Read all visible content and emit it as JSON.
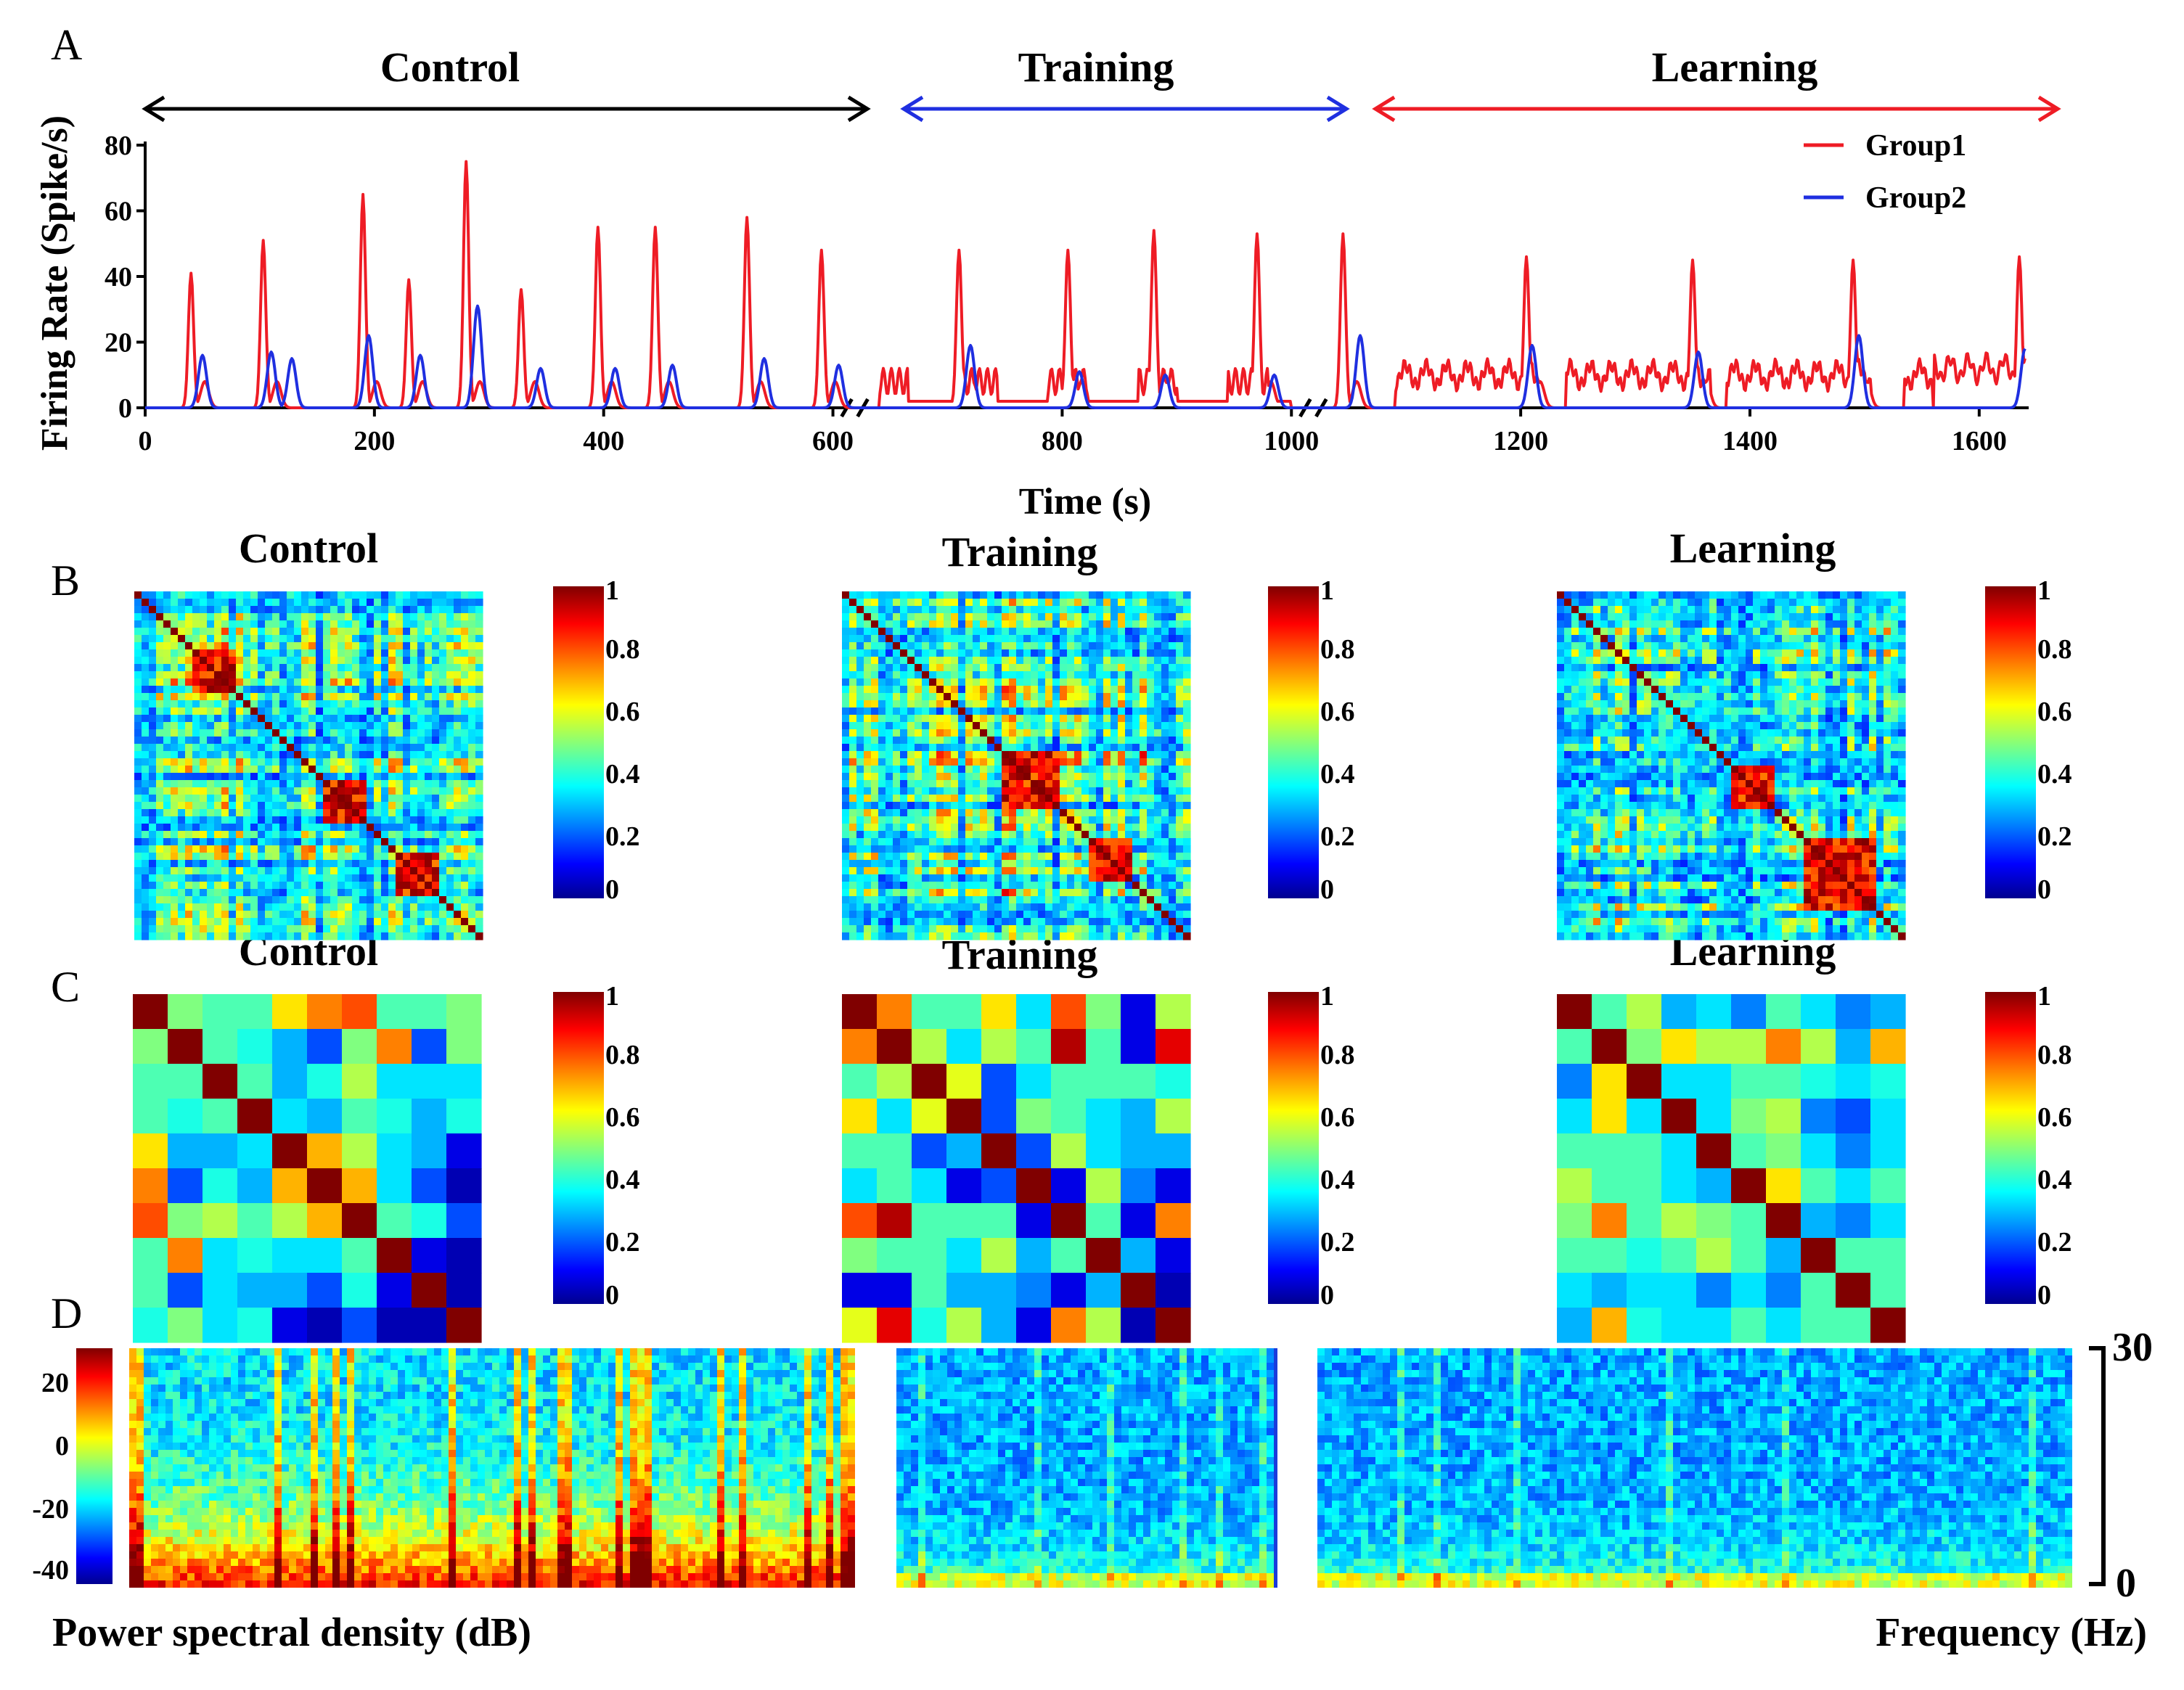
{
  "panels": {
    "A": "A",
    "B": "B",
    "C": "C",
    "D": "D"
  },
  "phases": {
    "control": "Control",
    "training": "Training",
    "learning": "Learning"
  },
  "panelA": {
    "ylabel": "Firing Rate (Spike/s)",
    "xlabel": "Time (s)",
    "yticks": [
      "0",
      "20",
      "40",
      "60",
      "80"
    ],
    "xticks": [
      "0",
      "200",
      "400",
      "600",
      "800",
      "1000",
      "1200",
      "1400",
      "1600"
    ],
    "legend": [
      "Group1",
      "Group2"
    ]
  },
  "colorbar_ticks": [
    "0",
    "0.2",
    "0.4",
    "0.6",
    "0.8",
    "1"
  ],
  "panelD": {
    "left_label": "Power spectral density (dB)",
    "right_label": "Frequency (Hz)",
    "cb_ticks": [
      "20",
      "0",
      "-20",
      "-40"
    ],
    "freq_ticks": [
      "30",
      "0"
    ]
  },
  "colors": {
    "group1": "#ee1c25",
    "group2": "#1f2fe0",
    "control_arrow": "#000000",
    "training_arrow": "#1f2fe0",
    "learning_arrow": "#ee1c25"
  },
  "chart_data": [
    {
      "type": "line",
      "ylabel": "Firing Rate (Spike/s)",
      "xlabel": "Time (s)",
      "ylim": [
        0,
        80
      ],
      "xlim": [
        0,
        1640
      ],
      "series": [
        {
          "name": "Group1",
          "peaks": [
            [
              40,
              41
            ],
            [
              103,
              51
            ],
            [
              190,
              65
            ],
            [
              230,
              39
            ],
            [
              280,
              75
            ],
            [
              328,
              36
            ],
            [
              395,
              55
            ],
            [
              445,
              55
            ],
            [
              525,
              58
            ],
            [
              590,
              48
            ],
            [
              710,
              48
            ],
            [
              805,
              48
            ],
            [
              880,
              54
            ],
            [
              970,
              53
            ],
            [
              1045,
              53
            ],
            [
              1205,
              46
            ],
            [
              1350,
              45
            ],
            [
              1490,
              45
            ],
            [
              1635,
              46
            ]
          ]
        },
        {
          "name": "Group2",
          "peaks": [
            [
              50,
              16
            ],
            [
              110,
              17
            ],
            [
              128,
              15
            ],
            [
              195,
              22
            ],
            [
              240,
              16
            ],
            [
              290,
              31
            ],
            [
              345,
              12
            ],
            [
              410,
              12
            ],
            [
              460,
              13
            ],
            [
              540,
              15
            ],
            [
              605,
              13
            ],
            [
              720,
              19
            ],
            [
              815,
              11
            ],
            [
              890,
              10
            ],
            [
              985,
              10
            ],
            [
              1060,
              22
            ],
            [
              1210,
              19
            ],
            [
              1355,
              17
            ],
            [
              1495,
              22
            ],
            [
              1640,
              18
            ]
          ]
        }
      ]
    },
    {
      "type": "heatmap",
      "title": "Control",
      "rows": 10,
      "values": [
        [
          1.0,
          0.5,
          0.45,
          0.45,
          0.65,
          0.75,
          0.8,
          0.45,
          0.45,
          0.5
        ],
        [
          0.5,
          1.0,
          0.45,
          0.4,
          0.3,
          0.2,
          0.5,
          0.75,
          0.2,
          0.5
        ],
        [
          0.45,
          0.45,
          1.0,
          0.45,
          0.3,
          0.4,
          0.55,
          0.35,
          0.35,
          0.35
        ],
        [
          0.45,
          0.4,
          0.45,
          1.0,
          0.35,
          0.3,
          0.45,
          0.4,
          0.3,
          0.4
        ],
        [
          0.65,
          0.3,
          0.3,
          0.35,
          1.0,
          0.7,
          0.55,
          0.35,
          0.3,
          0.1
        ],
        [
          0.75,
          0.2,
          0.4,
          0.3,
          0.7,
          1.0,
          0.7,
          0.35,
          0.2,
          0.05
        ],
        [
          0.8,
          0.5,
          0.55,
          0.45,
          0.55,
          0.7,
          1.0,
          0.45,
          0.4,
          0.2
        ],
        [
          0.45,
          0.75,
          0.35,
          0.4,
          0.35,
          0.35,
          0.45,
          1.0,
          0.1,
          0.05
        ],
        [
          0.45,
          0.2,
          0.35,
          0.3,
          0.3,
          0.2,
          0.4,
          0.1,
          1.0,
          0.05
        ],
        [
          0.4,
          0.5,
          0.35,
          0.4,
          0.1,
          0.05,
          0.2,
          0.05,
          0.05,
          1.0
        ]
      ]
    },
    {
      "type": "heatmap",
      "title": "Training",
      "rows": 10,
      "values": [
        [
          1.0,
          0.75,
          0.45,
          0.45,
          0.65,
          0.35,
          0.8,
          0.5,
          0.1,
          0.55
        ],
        [
          0.75,
          1.0,
          0.55,
          0.35,
          0.55,
          0.45,
          0.95,
          0.45,
          0.1,
          0.9
        ],
        [
          0.45,
          0.55,
          1.0,
          0.6,
          0.2,
          0.35,
          0.45,
          0.45,
          0.45,
          0.4
        ],
        [
          0.65,
          0.35,
          0.6,
          1.0,
          0.2,
          0.5,
          0.45,
          0.35,
          0.3,
          0.55
        ],
        [
          0.45,
          0.45,
          0.2,
          0.3,
          1.0,
          0.2,
          0.55,
          0.35,
          0.3,
          0.3
        ],
        [
          0.35,
          0.45,
          0.35,
          0.1,
          0.2,
          1.0,
          0.1,
          0.55,
          0.25,
          0.1
        ],
        [
          0.8,
          0.95,
          0.45,
          0.45,
          0.45,
          0.1,
          1.0,
          0.45,
          0.1,
          0.75
        ],
        [
          0.5,
          0.45,
          0.45,
          0.35,
          0.55,
          0.3,
          0.45,
          1.0,
          0.3,
          0.1
        ],
        [
          0.1,
          0.1,
          0.45,
          0.3,
          0.3,
          0.25,
          0.1,
          0.3,
          1.0,
          0.05
        ],
        [
          0.6,
          0.9,
          0.4,
          0.55,
          0.3,
          0.1,
          0.75,
          0.55,
          0.05,
          1.0
        ]
      ]
    },
    {
      "type": "heatmap",
      "title": "Learning",
      "rows": 10,
      "values": [
        [
          1.0,
          0.45,
          0.55,
          0.3,
          0.35,
          0.25,
          0.45,
          0.35,
          0.25,
          0.3
        ],
        [
          0.45,
          1.0,
          0.5,
          0.65,
          0.55,
          0.55,
          0.75,
          0.55,
          0.3,
          0.7
        ],
        [
          0.25,
          0.65,
          1.0,
          0.35,
          0.35,
          0.45,
          0.45,
          0.4,
          0.35,
          0.4
        ],
        [
          0.35,
          0.65,
          0.35,
          1.0,
          0.35,
          0.5,
          0.55,
          0.25,
          0.2,
          0.35
        ],
        [
          0.45,
          0.45,
          0.45,
          0.35,
          1.0,
          0.45,
          0.5,
          0.35,
          0.25,
          0.35
        ],
        [
          0.55,
          0.45,
          0.45,
          0.35,
          0.3,
          1.0,
          0.65,
          0.45,
          0.35,
          0.45
        ],
        [
          0.5,
          0.75,
          0.45,
          0.55,
          0.5,
          0.45,
          1.0,
          0.3,
          0.25,
          0.35
        ],
        [
          0.45,
          0.45,
          0.4,
          0.45,
          0.55,
          0.45,
          0.3,
          1.0,
          0.45,
          0.45
        ],
        [
          0.35,
          0.3,
          0.35,
          0.35,
          0.25,
          0.35,
          0.25,
          0.45,
          1.0,
          0.45
        ],
        [
          0.3,
          0.7,
          0.4,
          0.35,
          0.35,
          0.45,
          0.35,
          0.45,
          0.45,
          1.0
        ]
      ]
    }
  ]
}
